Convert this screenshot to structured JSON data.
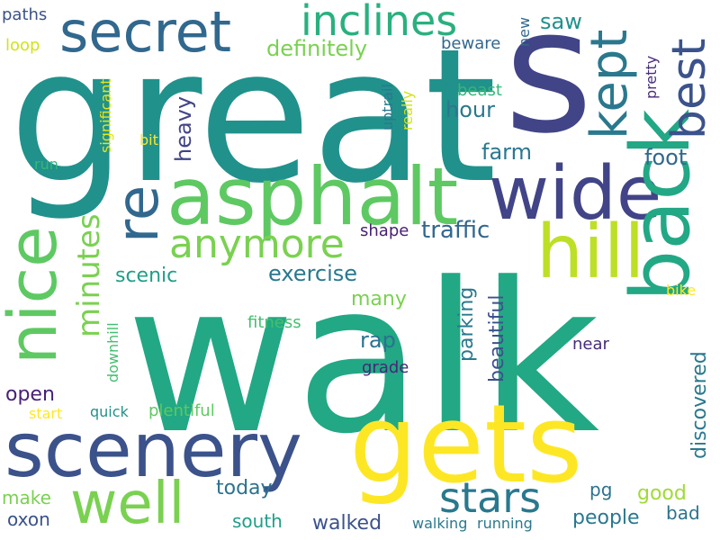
{
  "words": [
    {
      "text": "walk",
      "color": "#22a884"
    },
    {
      "text": "great",
      "color": "#21918c"
    },
    {
      "text": "s",
      "color": "#414487"
    },
    {
      "text": "gets",
      "color": "#fde725"
    },
    {
      "text": "asphalt",
      "color": "#5ec962"
    },
    {
      "text": "scenery",
      "color": "#3b528b"
    },
    {
      "text": "wide",
      "color": "#414487"
    },
    {
      "text": "back",
      "color": "#22a884"
    },
    {
      "text": "nice",
      "color": "#5ec962"
    },
    {
      "text": "hill",
      "color": "#bddf26"
    },
    {
      "text": "secret",
      "color": "#31688e"
    },
    {
      "text": "re",
      "color": "#31688e"
    },
    {
      "text": "best",
      "color": "#3b528b"
    },
    {
      "text": "well",
      "color": "#7ad151"
    },
    {
      "text": "kept",
      "color": "#2a788e"
    },
    {
      "text": "inclines",
      "color": "#2ab07f"
    },
    {
      "text": "anymore",
      "color": "#7ad151"
    },
    {
      "text": "stars",
      "color": "#2a788e"
    },
    {
      "text": "minutes",
      "color": "#7ad151"
    },
    {
      "text": "definitely",
      "color": "#7ad151"
    },
    {
      "text": "traffic",
      "color": "#31688e"
    },
    {
      "text": "exercise",
      "color": "#2a788e"
    },
    {
      "text": "scenic",
      "color": "#1f9e89"
    },
    {
      "text": "hour",
      "color": "#2a788e"
    },
    {
      "text": "farm",
      "color": "#2a788e"
    },
    {
      "text": "foot",
      "color": "#31688e"
    },
    {
      "text": "many",
      "color": "#7ad151"
    },
    {
      "text": "heavy",
      "color": "#414487"
    },
    {
      "text": "rap",
      "color": "#2c728e"
    },
    {
      "text": "parking",
      "color": "#2a788e"
    },
    {
      "text": "beautiful",
      "color": "#3b528b"
    },
    {
      "text": "discovered",
      "color": "#2a788e"
    },
    {
      "text": "open",
      "color": "#482173"
    },
    {
      "text": "today",
      "color": "#2c728e"
    },
    {
      "text": "good",
      "color": "#a0da39"
    },
    {
      "text": "people",
      "color": "#2a788e"
    },
    {
      "text": "make",
      "color": "#7ad151"
    },
    {
      "text": "south",
      "color": "#1f9e89"
    },
    {
      "text": "walked",
      "color": "#3b528b"
    },
    {
      "text": "oxon",
      "color": "#3b528b"
    },
    {
      "text": "pg",
      "color": "#2c728e"
    },
    {
      "text": "bad",
      "color": "#2c728e"
    },
    {
      "text": "saw",
      "color": "#21918c"
    },
    {
      "text": "new",
      "color": "#31688e"
    },
    {
      "text": "pretty",
      "color": "#472c7a"
    },
    {
      "text": "beast",
      "color": "#35b779"
    },
    {
      "text": "beware",
      "color": "#31688e"
    },
    {
      "text": "uptrail",
      "color": "#2a788e"
    },
    {
      "text": "really",
      "color": "#d2e21b"
    },
    {
      "text": "significant",
      "color": "#e5e419"
    },
    {
      "text": "paths",
      "color": "#3b528b"
    },
    {
      "text": "loop",
      "color": "#d2e21b"
    },
    {
      "text": "bit",
      "color": "#fde725"
    },
    {
      "text": "run",
      "color": "#35b779"
    },
    {
      "text": "shape",
      "color": "#482173"
    },
    {
      "text": "bike",
      "color": "#fde725"
    },
    {
      "text": "fitness",
      "color": "#44bf70"
    },
    {
      "text": "downhill",
      "color": "#44bf70"
    },
    {
      "text": "near",
      "color": "#472c7a"
    },
    {
      "text": "grade",
      "color": "#482878"
    },
    {
      "text": "start",
      "color": "#fde725"
    },
    {
      "text": "quick",
      "color": "#21918c"
    },
    {
      "text": "plentiful",
      "color": "#5ec962"
    },
    {
      "text": "walking",
      "color": "#2a788e"
    },
    {
      "text": "running",
      "color": "#2a788e"
    }
  ]
}
